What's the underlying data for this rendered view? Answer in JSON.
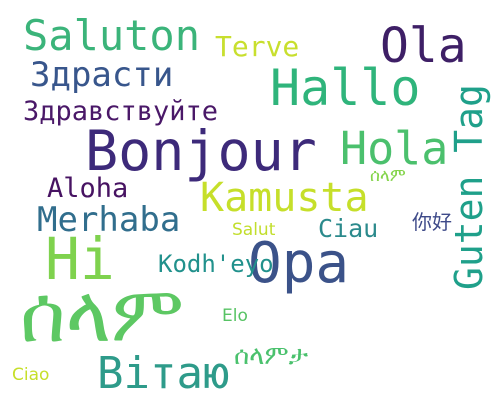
{
  "words": [
    {
      "text": "Saluton",
      "color": "#3bb47a"
    },
    {
      "text": "Terve",
      "color": "#c8df2e"
    },
    {
      "text": "Ola",
      "color": "#3e1f66"
    },
    {
      "text": "Здрасти",
      "color": "#38568c"
    },
    {
      "text": "Hallo",
      "color": "#2fb47b"
    },
    {
      "text": "Здравствуйте",
      "color": "#4a1868"
    },
    {
      "text": "Bonjour",
      "color": "#3d2a7a"
    },
    {
      "text": "Guten Tag",
      "color": "#1fa08a"
    },
    {
      "text": "Hola",
      "color": "#4bc06d"
    },
    {
      "text": "Aloha",
      "color": "#471362"
    },
    {
      "text": "Kamusta",
      "color": "#c6df2a"
    },
    {
      "text": "ሰላም",
      "color": "#84d44b"
    },
    {
      "text": "Merhaba",
      "color": "#316e8d"
    },
    {
      "text": "Ciau",
      "color": "#2b8a8c"
    },
    {
      "text": "你好",
      "color": "#3e4a89"
    },
    {
      "text": "Hi",
      "color": "#7fd24e"
    },
    {
      "text": "Salut",
      "color": "#c2de2c"
    },
    {
      "text": "Opa",
      "color": "#3b5289"
    },
    {
      "text": "Kodh'eyo",
      "color": "#21918c"
    },
    {
      "text": "ሰላም",
      "color": "#5dc863"
    },
    {
      "text": "Elo",
      "color": "#57c364"
    },
    {
      "text": "ሰላምታ",
      "color": "#4ac16d"
    },
    {
      "text": "Ciao",
      "color": "#c6df2a"
    },
    {
      "text": "Вітаю",
      "color": "#2e9b8a"
    }
  ]
}
